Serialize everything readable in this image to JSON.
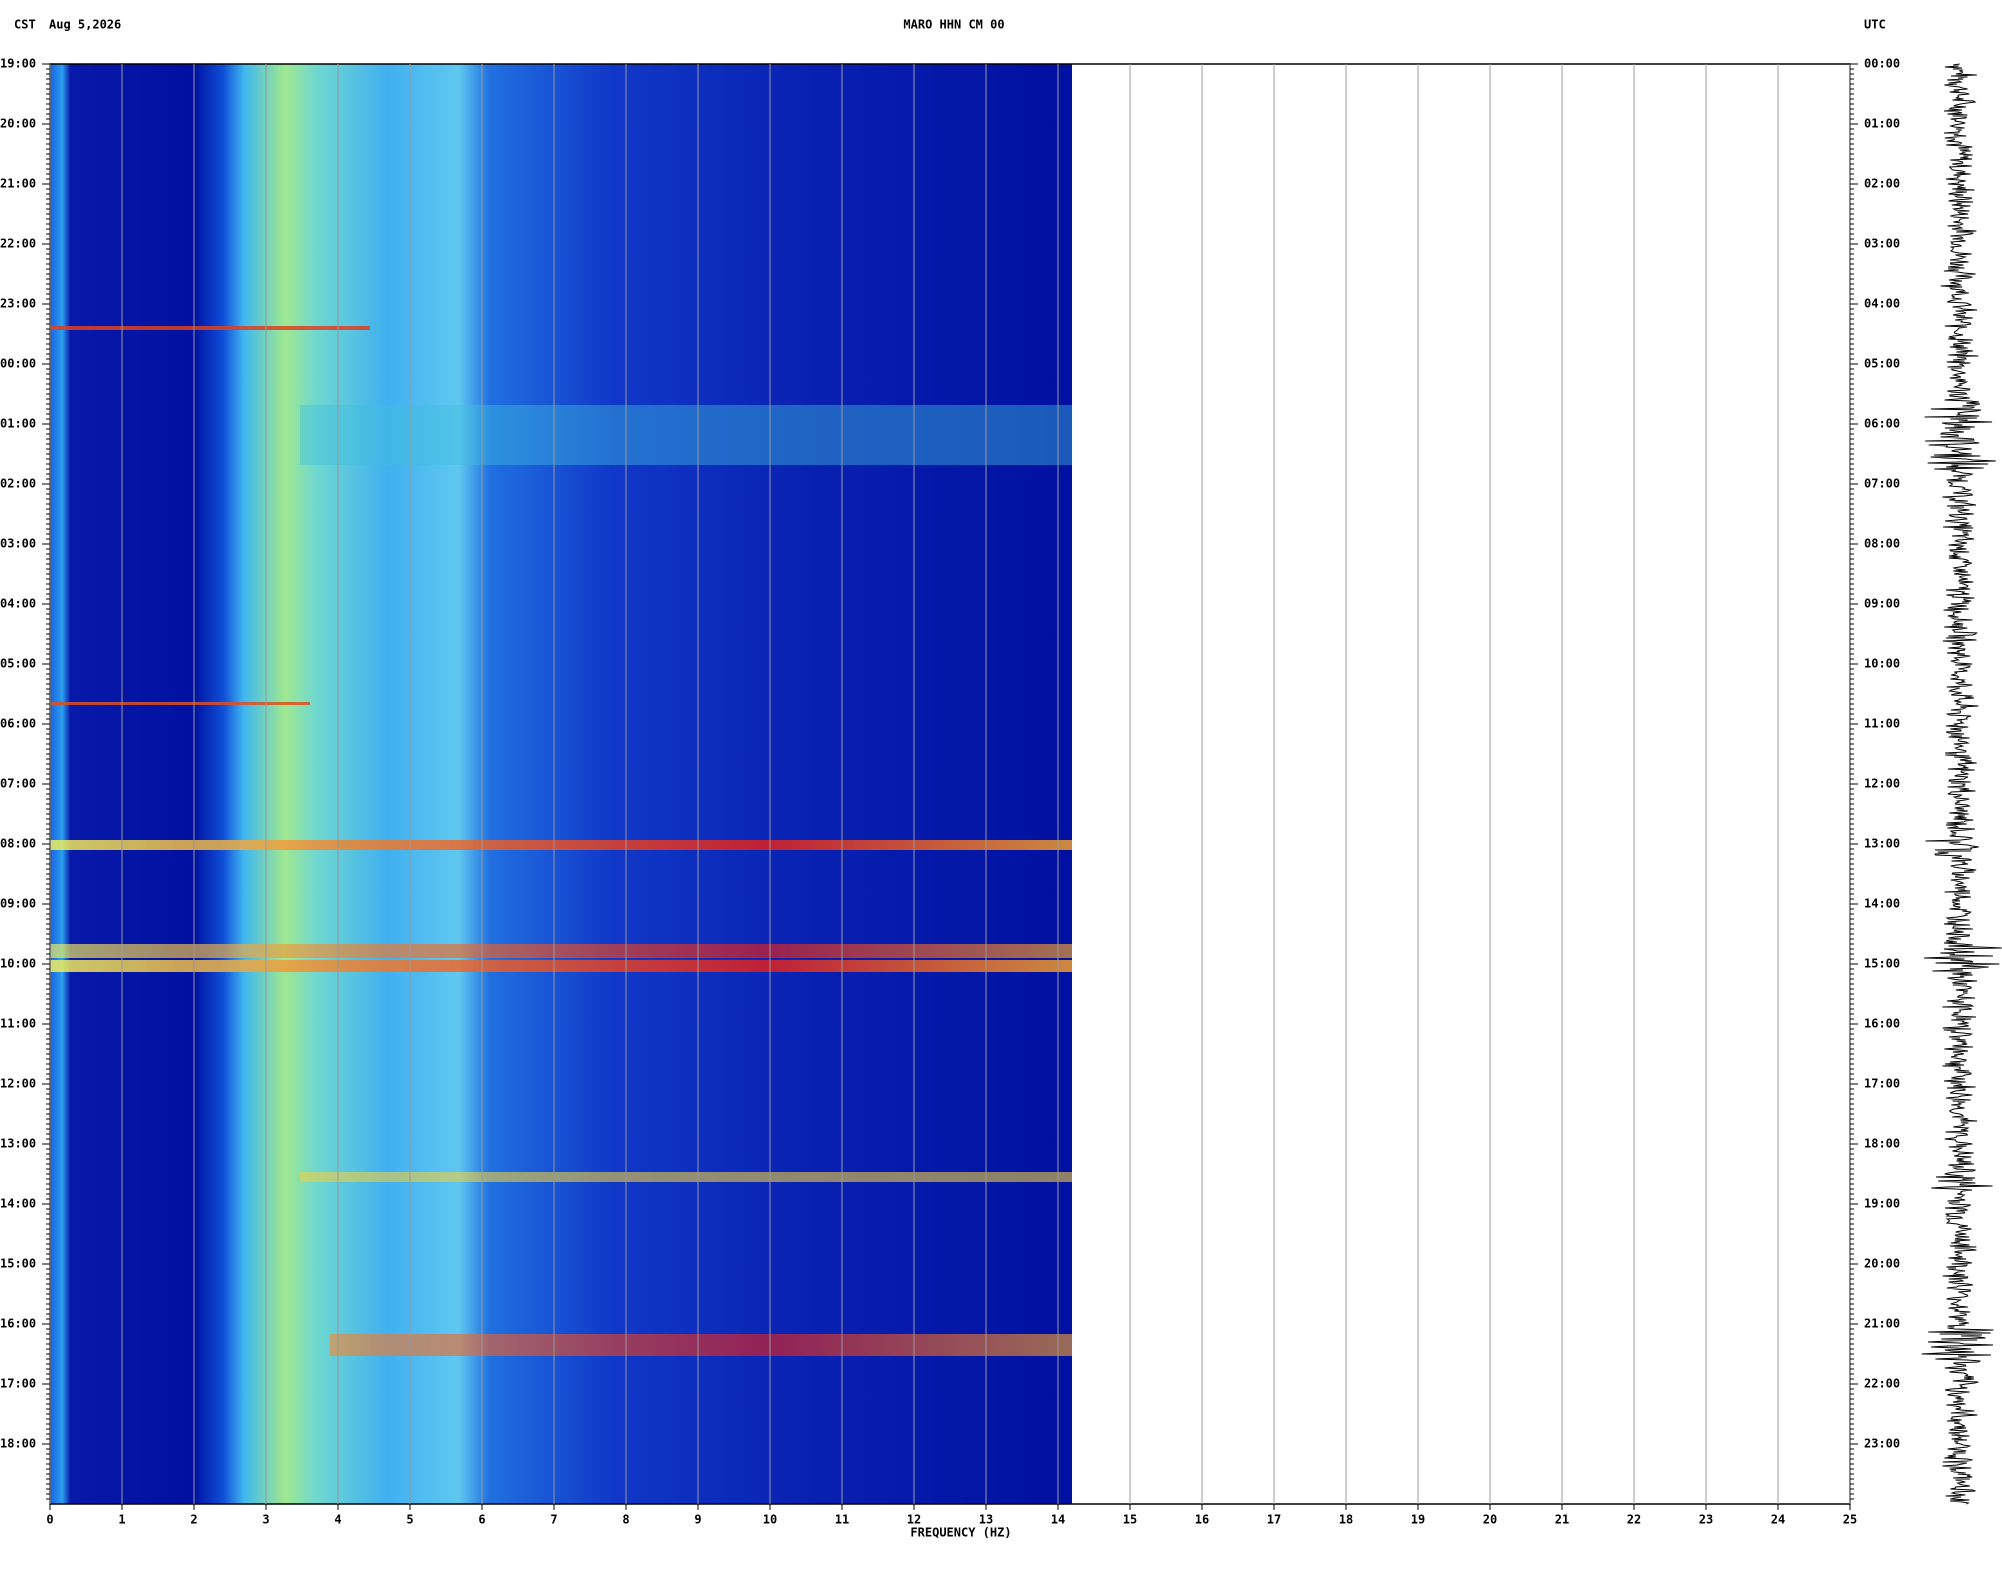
{
  "chart_data": {
    "type": "spectrogram",
    "timezone_left": "CST",
    "date": "Aug 5,2026",
    "title": "MARO HHN CM 00",
    "timezone_right": "UTC",
    "xlabel": "FREQUENCY (HZ)",
    "xlim": [
      0,
      25
    ],
    "xticks": [
      0,
      1,
      2,
      3,
      4,
      5,
      6,
      7,
      8,
      9,
      10,
      11,
      12,
      13,
      14,
      15,
      16,
      17,
      18,
      19,
      20,
      21,
      22,
      23,
      24,
      25
    ],
    "y_categories": [
      "19:00",
      "20:00",
      "21:00",
      "22:00",
      "23:00",
      "00:00",
      "01:00",
      "02:00",
      "03:00",
      "04:00",
      "05:00",
      "06:00",
      "07:00",
      "08:00",
      "09:00",
      "10:00",
      "11:00",
      "12:00",
      "13:00",
      "14:00",
      "15:00",
      "16:00",
      "17:00",
      "18:00"
    ],
    "y2_categories": [
      "00:00",
      "01:00",
      "02:00",
      "03:00",
      "04:00",
      "05:00",
      "06:00",
      "07:00",
      "08:00",
      "09:00",
      "10:00",
      "11:00",
      "12:00",
      "13:00",
      "14:00",
      "15:00",
      "16:00",
      "17:00",
      "18:00",
      "19:00",
      "20:00",
      "21:00",
      "22:00",
      "23:00"
    ],
    "grid": true
  }
}
